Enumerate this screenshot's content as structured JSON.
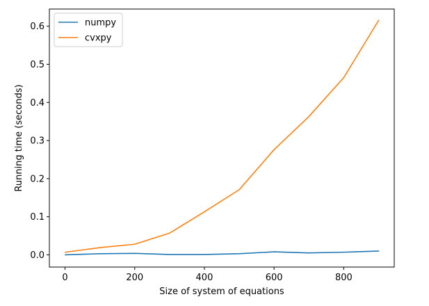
{
  "chart_data": {
    "type": "line",
    "title": "",
    "xlabel": "Size of system of equations",
    "ylabel": "Running time (seconds)",
    "xlim": [
      -45,
      945
    ],
    "ylim": [
      -0.032,
      0.645
    ],
    "xticks": [
      0,
      200,
      400,
      600,
      800
    ],
    "yticks": [
      0.0,
      0.1,
      0.2,
      0.3,
      0.4,
      0.5,
      0.6
    ],
    "xtick_labels": [
      "0",
      "200",
      "400",
      "600",
      "800"
    ],
    "ytick_labels": [
      "0.0",
      "0.1",
      "0.2",
      "0.3",
      "0.4",
      "0.5",
      "0.6"
    ],
    "grid": false,
    "legend_position": "upper-left",
    "x": [
      1,
      100,
      200,
      300,
      400,
      500,
      600,
      700,
      800,
      900
    ],
    "series": [
      {
        "name": "numpy",
        "color": "#1f77b4",
        "values": [
          0.0,
          0.003,
          0.004,
          0.001,
          0.001,
          0.003,
          0.008,
          0.005,
          0.007,
          0.01
        ]
      },
      {
        "name": "cvxpy",
        "color": "#ff7f0e",
        "values": [
          0.007,
          0.019,
          0.028,
          0.057,
          0.113,
          0.171,
          0.276,
          0.363,
          0.465,
          0.615
        ]
      }
    ]
  }
}
